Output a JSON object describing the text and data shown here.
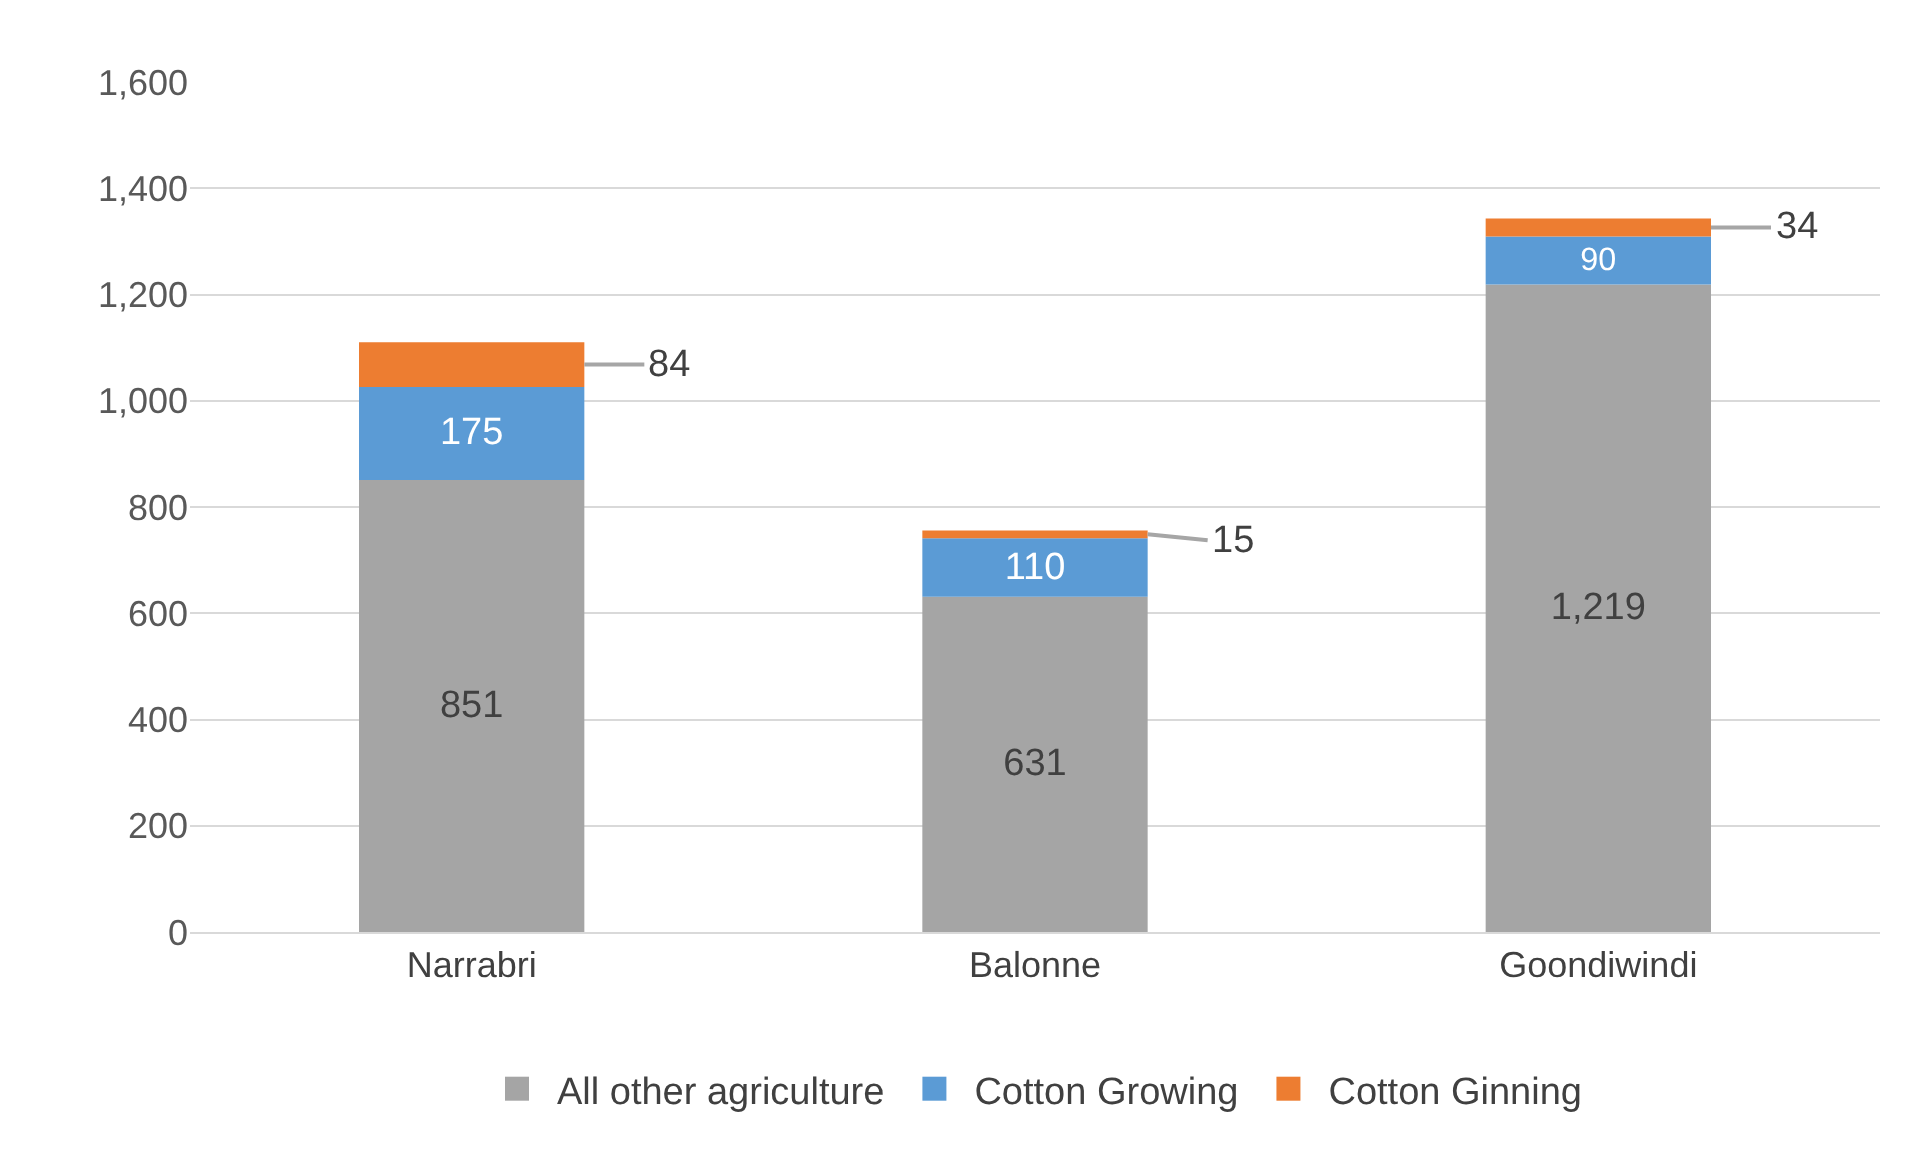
{
  "chart_data": {
    "type": "bar",
    "stacked": true,
    "categories": [
      "Narrabri",
      "Balonne",
      "Goondiwindi"
    ],
    "series": [
      {
        "name": "All other agriculture",
        "color": "#a5a5a5",
        "values": [
          851,
          631,
          1219
        ],
        "value_labels": [
          "851",
          "631",
          "1,219"
        ]
      },
      {
        "name": "Cotton Growing",
        "color": "#5b9bd5",
        "values": [
          175,
          110,
          90
        ],
        "value_labels": [
          "175",
          "110",
          "90"
        ]
      },
      {
        "name": "Cotton Ginning",
        "color": "#ed7d31",
        "values": [
          84,
          15,
          34
        ],
        "value_labels": [
          "84",
          "15",
          "34"
        ]
      }
    ],
    "ylim": [
      0,
      1600
    ],
    "yticks": [
      0,
      200,
      400,
      600,
      800,
      {
        "value": 1000,
        "label": "1,000"
      },
      {
        "value": 1200,
        "label": "1,200"
      },
      {
        "value": 1400,
        "label": "1,400"
      },
      {
        "value": 1600,
        "label": "1,600"
      }
    ],
    "grid": "y",
    "legend": "bottom"
  }
}
